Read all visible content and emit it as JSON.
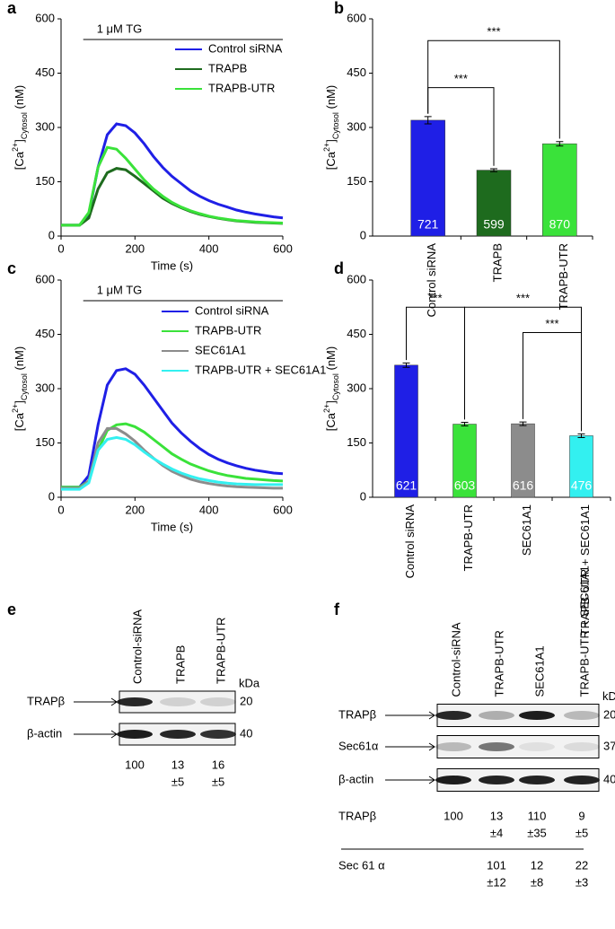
{
  "chart_data": [
    {
      "type": "line",
      "panel_label": "a",
      "annotation": "1 μM TG",
      "ylabel": [
        "[Ca",
        "2+",
        "]",
        "Cytosol",
        " (nM)"
      ],
      "xlabel": "Time (s)",
      "x": [
        0,
        25,
        50,
        75,
        100,
        125,
        150,
        175,
        200,
        225,
        250,
        275,
        300,
        325,
        350,
        375,
        400,
        425,
        450,
        475,
        500,
        525,
        550,
        575,
        600
      ],
      "xlim": [
        0,
        600
      ],
      "xticks": [
        0,
        200,
        400,
        600
      ],
      "ylim": [
        0,
        600
      ],
      "yticks": [
        0,
        150,
        300,
        450,
        600
      ],
      "series": [
        {
          "name": "Control siRNA",
          "color": "#1f1fe6",
          "values": [
            30,
            30,
            30,
            60,
            190,
            280,
            310,
            305,
            285,
            255,
            220,
            190,
            165,
            145,
            125,
            110,
            98,
            88,
            80,
            72,
            66,
            61,
            57,
            53,
            50
          ]
        },
        {
          "name": "TRAPB",
          "color": "#1e6b1e",
          "values": [
            30,
            30,
            30,
            50,
            130,
            175,
            187,
            183,
            165,
            145,
            125,
            105,
            90,
            78,
            68,
            60,
            54,
            49,
            45,
            42,
            40,
            38,
            37,
            36,
            35
          ]
        },
        {
          "name": "TRAPB-UTR",
          "color": "#3ae23a",
          "values": [
            30,
            30,
            30,
            65,
            190,
            245,
            240,
            215,
            185,
            155,
            130,
            110,
            93,
            80,
            70,
            62,
            55,
            50,
            46,
            43,
            41,
            39,
            38,
            37,
            36
          ]
        }
      ]
    },
    {
      "type": "bar",
      "panel_label": "b",
      "ylabel": [
        "[Ca",
        "2+",
        "]",
        "Cytosol",
        " (nM)"
      ],
      "categories": [
        "Control siRNA",
        "TRAPB",
        "TRAPB-UTR"
      ],
      "values": [
        320,
        182,
        255
      ],
      "errors": [
        10,
        4,
        6
      ],
      "n": [
        721,
        599,
        870
      ],
      "colors": [
        "#1f1fe6",
        "#1e6b1e",
        "#3ae23a"
      ],
      "annotations": [
        "***",
        "***"
      ],
      "ylim": [
        0,
        600
      ],
      "yticks": [
        0,
        150,
        300,
        450,
        600
      ]
    },
    {
      "type": "line",
      "panel_label": "c",
      "annotation": "1 μM TG",
      "ylabel": [
        "[Ca",
        "2+",
        "]",
        "Cytosol",
        " (nM)"
      ],
      "xlabel": "Time (s)",
      "x": [
        0,
        25,
        50,
        75,
        100,
        125,
        150,
        175,
        200,
        225,
        250,
        275,
        300,
        325,
        350,
        375,
        400,
        425,
        450,
        475,
        500,
        525,
        550,
        575,
        600
      ],
      "xlim": [
        0,
        600
      ],
      "xticks": [
        0,
        200,
        400,
        600
      ],
      "ylim": [
        0,
        600
      ],
      "yticks": [
        0,
        150,
        300,
        450,
        600
      ],
      "series": [
        {
          "name": "Control siRNA",
          "color": "#1f1fe6",
          "values": [
            28,
            28,
            28,
            60,
            200,
            310,
            350,
            355,
            340,
            310,
            275,
            240,
            205,
            178,
            155,
            135,
            118,
            105,
            95,
            87,
            80,
            75,
            71,
            67,
            65
          ]
        },
        {
          "name": "TRAPB-UTR",
          "color": "#3ae23a",
          "values": [
            28,
            28,
            28,
            45,
            130,
            185,
            200,
            203,
            195,
            180,
            160,
            140,
            120,
            105,
            92,
            82,
            73,
            66,
            60,
            56,
            52,
            50,
            48,
            46,
            45
          ]
        },
        {
          "name": "SEC61A1",
          "color": "#8c8c8c",
          "values": [
            25,
            25,
            25,
            45,
            150,
            190,
            190,
            175,
            155,
            130,
            108,
            88,
            72,
            60,
            50,
            43,
            38,
            34,
            31,
            29,
            28,
            27,
            26,
            25,
            25
          ]
        },
        {
          "name": "TRAPB-UTR + SEC61A1",
          "color": "#33f0f0",
          "values": [
            22,
            22,
            22,
            40,
            130,
            160,
            165,
            160,
            145,
            125,
            107,
            92,
            78,
            67,
            58,
            51,
            46,
            42,
            39,
            37,
            36,
            35,
            35,
            35,
            35
          ]
        }
      ]
    },
    {
      "type": "bar",
      "panel_label": "d",
      "ylabel": [
        "[Ca",
        "2+",
        "]",
        "Cytosol",
        " (nM)"
      ],
      "categories": [
        "Control siRNA",
        "TRAPB-UTR",
        "SEC61A1",
        "TRAPB-UTR + SEC61A1"
      ],
      "values": [
        365,
        202,
        203,
        170
      ],
      "errors": [
        6,
        5,
        5,
        5
      ],
      "n": [
        621,
        603,
        616,
        476
      ],
      "colors": [
        "#1f1fe6",
        "#3ae23a",
        "#8c8c8c",
        "#33f0f0"
      ],
      "annotations": [
        "***",
        "***",
        "***"
      ],
      "ylim": [
        0,
        600
      ],
      "yticks": [
        0,
        150,
        300,
        450,
        600
      ]
    }
  ],
  "blots": [
    {
      "panel_label": "e",
      "unit": "kDa",
      "lanes": [
        "Control-siRNA",
        "TRAPB",
        "TRAPB-UTR"
      ],
      "rows": [
        {
          "name": "TRAPβ",
          "kda": 20
        },
        {
          "name": "β-actin",
          "kda": 40
        }
      ],
      "quant": [
        {
          "values": [
            100,
            13,
            16
          ],
          "errors": [
            null,
            "±5",
            "±5"
          ]
        }
      ]
    },
    {
      "panel_label": "f",
      "unit": "kDa",
      "lanes": [
        "Control-siRNA",
        "TRAPB-UTR",
        "SEC61A1",
        "TRAPB-UTR + SEC61A1"
      ],
      "rows": [
        {
          "name": "TRAPβ",
          "kda": 20
        },
        {
          "name": "Sec61α",
          "kda": 37
        },
        {
          "name": "β-actin",
          "kda": 40
        }
      ],
      "quant": [
        {
          "name": "TRAPβ",
          "values": [
            100,
            13,
            110,
            9
          ],
          "errors": [
            null,
            "±4",
            "±35",
            "±5"
          ]
        },
        {
          "name": "Sec 61 α",
          "values": [
            null,
            101,
            12,
            22
          ],
          "errors": [
            null,
            "±12",
            "±8",
            "±3"
          ]
        }
      ]
    }
  ]
}
